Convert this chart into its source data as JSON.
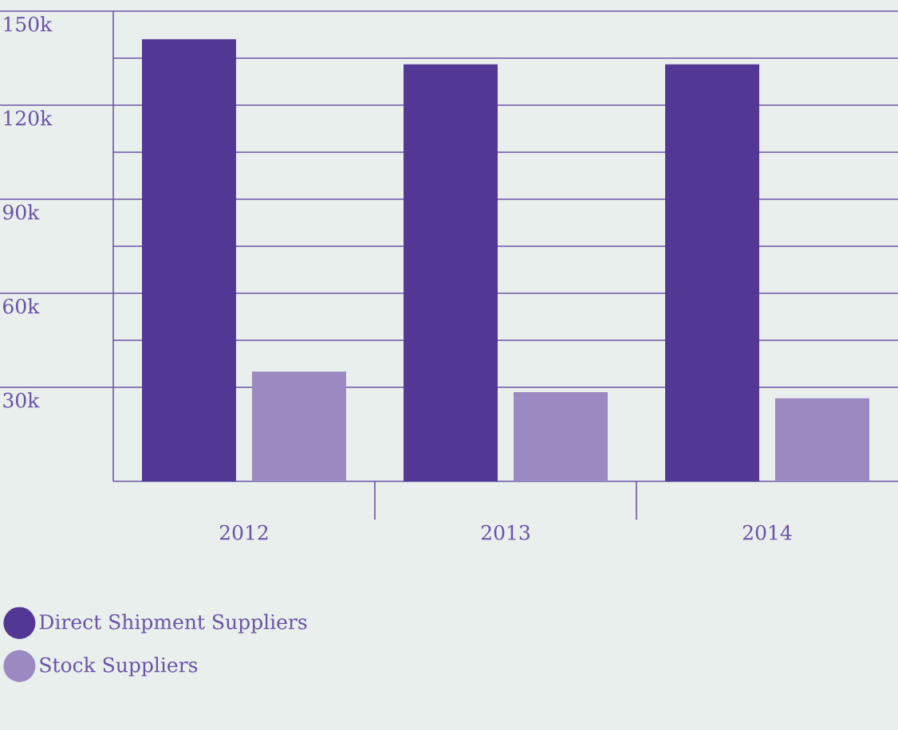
{
  "chart_data": {
    "type": "bar",
    "categories": [
      "2012",
      "2013",
      "2014"
    ],
    "series": [
      {
        "name": "Direct Shipment Suppliers",
        "color": "#523894",
        "values": [
          141000,
          133000,
          133000
        ]
      },
      {
        "name": "Stock Suppliers",
        "color": "#9a8ac1",
        "values": [
          35000,
          28500,
          26500
        ]
      }
    ],
    "ylim": [
      0,
      150000
    ],
    "yticks": [
      {
        "value": 30000,
        "label": "30k"
      },
      {
        "value": 60000,
        "label": "60k"
      },
      {
        "value": 90000,
        "label": "90k"
      },
      {
        "value": 120000,
        "label": "120k"
      },
      {
        "value": 150000,
        "label": "150k"
      }
    ],
    "grid": true,
    "legend": "bottom left"
  }
}
